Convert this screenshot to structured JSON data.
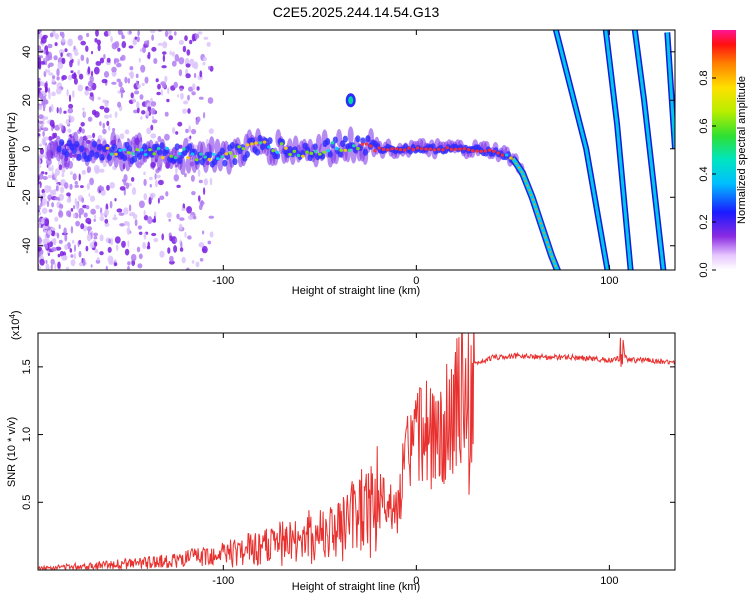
{
  "title": "C2E5.2025.244.14.54.G13",
  "chart_data": [
    {
      "type": "heatmap",
      "xlabel": "Height of straight line (km)",
      "ylabel": "Frequency (Hz)",
      "xlim": [
        -196,
        134
      ],
      "ylim": [
        -50,
        49
      ],
      "xticks": [
        -100,
        0,
        100
      ],
      "xtick_labels": [
        "-100",
        "0",
        "100"
      ],
      "yticks": [
        -40,
        -20,
        0,
        20,
        40
      ],
      "ytick_labels": [
        "-40",
        "-20",
        "0",
        "20",
        "40"
      ],
      "colorbar": {
        "label": "Normalized spectral amplitude",
        "range": [
          0,
          1
        ],
        "ticks": [
          0.0,
          0.2,
          0.4,
          0.6,
          0.8
        ],
        "tick_labels": [
          "0.0",
          "0.2",
          "0.4",
          "0.6",
          "0.8"
        ],
        "colormap": "rainbow"
      },
      "main_trace": [
        [
          -190,
          0
        ],
        [
          -140,
          -2
        ],
        [
          -100,
          -3
        ],
        [
          -80,
          1
        ],
        [
          -60,
          -1
        ],
        [
          -40,
          1
        ],
        [
          -30,
          2
        ],
        [
          -20,
          0
        ],
        [
          0,
          0
        ],
        [
          20,
          0
        ],
        [
          40,
          -1
        ],
        [
          50,
          -4
        ],
        [
          55,
          -10
        ],
        [
          60,
          -20
        ],
        [
          65,
          -32
        ],
        [
          70,
          -44
        ],
        [
          74,
          -52
        ]
      ],
      "side_traces": [
        {
          "points": [
            [
              72,
              50
            ],
            [
              88,
              0
            ],
            [
              99,
              -50
            ]
          ]
        },
        {
          "points": [
            [
              98,
              50
            ],
            [
              104,
              10
            ],
            [
              111,
              -50
            ]
          ]
        },
        {
          "points": [
            [
              113,
              50
            ],
            [
              118,
              20
            ],
            [
              128,
              -50
            ]
          ]
        },
        {
          "points": [
            [
              130,
              48
            ],
            [
              134,
              0
            ]
          ]
        }
      ],
      "feature_points": [
        {
          "x": -34,
          "y": 20,
          "label": ""
        }
      ]
    },
    {
      "type": "line",
      "xlabel": "Height of straight line (km)",
      "ylabel": "SNR (10 * v/v)",
      "y_multiplier": "(x10",
      "y_multiplier_exp": "4",
      "y_multiplier_close": ")",
      "xlim": [
        -196,
        134
      ],
      "ylim": [
        0,
        1.75
      ],
      "xticks": [
        -100,
        0,
        100
      ],
      "xtick_labels": [
        "-100",
        "0",
        "100"
      ],
      "yticks": [
        0.5,
        1.0,
        1.5
      ],
      "ytick_labels": [
        "0.5",
        "1.0",
        "1.5"
      ],
      "series": [
        {
          "name": "SNR",
          "color": "#e8302e",
          "x": [
            -196,
            -180,
            -160,
            -140,
            -120,
            -100,
            -80,
            -60,
            -40,
            -30,
            -25,
            -20,
            -17,
            -15,
            -12,
            -10,
            -5,
            0,
            5,
            10,
            15,
            20,
            25,
            30,
            40,
            50,
            60,
            70,
            80,
            90,
            100,
            105,
            107,
            110,
            120,
            134
          ],
          "y": [
            0.02,
            0.04,
            0.06,
            0.08,
            0.12,
            0.18,
            0.25,
            0.35,
            0.45,
            0.6,
            0.7,
            0.85,
            0.55,
            0.5,
            0.5,
            0.45,
            0.9,
            1.05,
            1.08,
            1.0,
            1.15,
            1.3,
            1.45,
            1.52,
            1.57,
            1.58,
            1.58,
            1.57,
            1.57,
            1.56,
            1.55,
            1.56,
            1.6,
            1.55,
            1.55,
            1.53
          ]
        }
      ]
    }
  ]
}
